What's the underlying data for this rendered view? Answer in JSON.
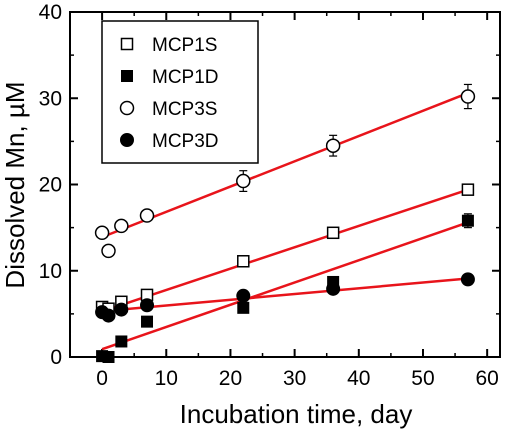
{
  "chart_data": {
    "type": "scatter",
    "title": "",
    "xlabel": "Incubation time, day",
    "ylabel": "Dissolved Mn, µM",
    "xlim": [
      -5,
      62
    ],
    "ylim": [
      0,
      40
    ],
    "xticks": [
      0,
      10,
      20,
      30,
      40,
      50,
      60
    ],
    "yticks": [
      0,
      10,
      20,
      30,
      40
    ],
    "legend_position": "top-left",
    "grid": false,
    "fit_line_color": "#e8141b",
    "series": [
      {
        "name": "MCP1S",
        "marker": "open-square",
        "x": [
          0,
          1,
          3,
          7,
          22,
          36,
          57
        ],
        "y": [
          5.8,
          5.6,
          6.4,
          7.2,
          11.1,
          14.4,
          19.4
        ],
        "err": [
          0.4,
          0.3,
          0.3,
          0.3,
          0.4,
          0.4,
          0.5
        ],
        "fit": {
          "x": [
            0,
            57
          ],
          "y": [
            5.3,
            19.4
          ]
        }
      },
      {
        "name": "MCP1D",
        "marker": "filled-square",
        "x": [
          0,
          1,
          3,
          7,
          22,
          36,
          57
        ],
        "y": [
          0.1,
          0.0,
          1.8,
          4.1,
          5.7,
          8.7,
          15.8
        ],
        "err": [
          0.2,
          0.2,
          0.2,
          0.3,
          0.3,
          0.4,
          0.8
        ],
        "fit": {
          "x": [
            0,
            57
          ],
          "y": [
            0.9,
            15.6
          ]
        }
      },
      {
        "name": "MCP3S",
        "marker": "open-circle",
        "x": [
          0,
          1,
          3,
          7,
          22,
          36,
          57
        ],
        "y": [
          14.4,
          12.3,
          15.2,
          16.4,
          20.4,
          24.5,
          30.2
        ],
        "err": [
          0.5,
          0.3,
          0.3,
          0.4,
          1.2,
          1.2,
          1.4
        ],
        "fit": {
          "x": [
            0,
            57
          ],
          "y": [
            13.9,
            30.6
          ]
        }
      },
      {
        "name": "MCP3D",
        "marker": "filled-circle",
        "x": [
          0,
          1,
          3,
          7,
          22,
          36,
          57
        ],
        "y": [
          5.2,
          4.8,
          5.5,
          6.0,
          7.1,
          7.9,
          9.0
        ],
        "err": [
          0.3,
          0.2,
          0.2,
          0.2,
          0.2,
          0.2,
          0.3
        ],
        "fit": {
          "x": [
            0,
            57
          ],
          "y": [
            5.3,
            9.1
          ]
        }
      }
    ]
  }
}
